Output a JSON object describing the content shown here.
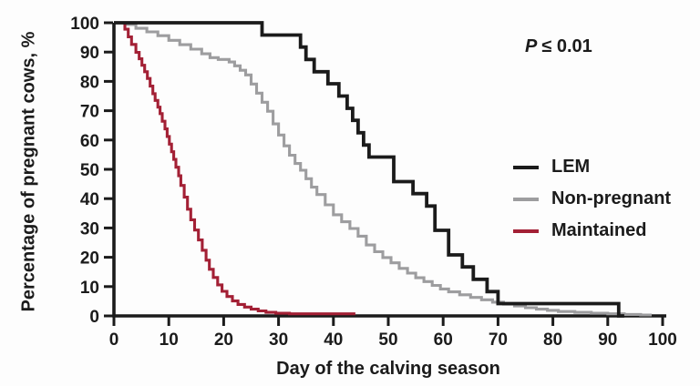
{
  "figure": {
    "annotation": {
      "prefix": "P",
      "rest": "≤ 0.01"
    }
  },
  "chart_data": {
    "type": "line",
    "subtype": "step_survival",
    "title": "",
    "xlabel": "Day of the calving season",
    "ylabel": "Percentage of pregnant cows, %",
    "xlim": [
      0,
      100
    ],
    "ylim": [
      0,
      100
    ],
    "xticks": [
      0,
      10,
      20,
      30,
      40,
      50,
      60,
      70,
      80,
      90,
      100
    ],
    "yticks": [
      0,
      10,
      20,
      30,
      40,
      50,
      60,
      70,
      80,
      90,
      100
    ],
    "grid": false,
    "legend_position": "right-middle",
    "annotation": "P ≤ 0.01",
    "axis_color": "#1b1b1b",
    "series": [
      {
        "name": "LEM",
        "color": "#1b1b1b",
        "end": 93,
        "steps": [
          [
            0,
            100
          ],
          [
            27,
            95.8
          ],
          [
            34,
            91.7
          ],
          [
            35,
            87.5
          ],
          [
            36.5,
            83.3
          ],
          [
            39,
            79.2
          ],
          [
            41,
            75
          ],
          [
            42.5,
            70.8
          ],
          [
            43.5,
            66.7
          ],
          [
            44.5,
            62.5
          ],
          [
            45.5,
            58.3
          ],
          [
            46.5,
            54.2
          ],
          [
            51,
            45.8
          ],
          [
            54.5,
            41.7
          ],
          [
            57,
            37.5
          ],
          [
            58.5,
            29.2
          ],
          [
            61,
            20.8
          ],
          [
            63.5,
            16.7
          ],
          [
            65.5,
            12.5
          ],
          [
            68,
            8.3
          ],
          [
            70,
            4.2
          ],
          [
            92,
            0
          ]
        ]
      },
      {
        "name": "Non-pregnant",
        "color": "#9d9d9f",
        "end": 98,
        "steps": [
          [
            0,
            100
          ],
          [
            2,
            99.4
          ],
          [
            4,
            98.1
          ],
          [
            6,
            96.9
          ],
          [
            8,
            95.6
          ],
          [
            10,
            94
          ],
          [
            12,
            92.5
          ],
          [
            14,
            91
          ],
          [
            16,
            89.4
          ],
          [
            17.5,
            88.1
          ],
          [
            19,
            87.5
          ],
          [
            21,
            86.6
          ],
          [
            22,
            85.3
          ],
          [
            23,
            83.8
          ],
          [
            24,
            82.2
          ],
          [
            25,
            79.1
          ],
          [
            26,
            76
          ],
          [
            27,
            72.9
          ],
          [
            28,
            69.8
          ],
          [
            29,
            65.5
          ],
          [
            30,
            61.7
          ],
          [
            31,
            58
          ],
          [
            32,
            54.8
          ],
          [
            33,
            52
          ],
          [
            34,
            49.7
          ],
          [
            35,
            46.8
          ],
          [
            36,
            43.9
          ],
          [
            37,
            41.4
          ],
          [
            38.5,
            37.9
          ],
          [
            40,
            34.5
          ],
          [
            41.5,
            32.1
          ],
          [
            43,
            29.8
          ],
          [
            44.5,
            27.2
          ],
          [
            46,
            24.2
          ],
          [
            47.5,
            21.9
          ],
          [
            49,
            19.9
          ],
          [
            50.5,
            18.1
          ],
          [
            52,
            16.2
          ],
          [
            53.5,
            14.6
          ],
          [
            55,
            13
          ],
          [
            56.5,
            11.7
          ],
          [
            58,
            10.4
          ],
          [
            59.5,
            9.2
          ],
          [
            61,
            8.2
          ],
          [
            63,
            7.2
          ],
          [
            65,
            6.3
          ],
          [
            67,
            5.5
          ],
          [
            69,
            4.7
          ],
          [
            71,
            4
          ],
          [
            73,
            3.4
          ],
          [
            75,
            2.8
          ],
          [
            77,
            2.3
          ],
          [
            79,
            1.9
          ],
          [
            81,
            1.5
          ],
          [
            84,
            1.2
          ],
          [
            87,
            0.9
          ],
          [
            90,
            0.7
          ],
          [
            93,
            0.5
          ],
          [
            96,
            0.3
          ]
        ]
      },
      {
        "name": "Maintained",
        "color": "#a32035",
        "end": 44,
        "steps": [
          [
            0,
            100
          ],
          [
            2,
            97.8
          ],
          [
            2.6,
            95.2
          ],
          [
            3.2,
            92.6
          ],
          [
            4,
            89.9
          ],
          [
            4.6,
            87.7
          ],
          [
            5.1,
            85.5
          ],
          [
            5.6,
            83.3
          ],
          [
            6.1,
            81
          ],
          [
            6.6,
            78.4
          ],
          [
            7.1,
            75.8
          ],
          [
            7.5,
            73.5
          ],
          [
            8,
            71.2
          ],
          [
            8.4,
            69
          ],
          [
            8.8,
            66.4
          ],
          [
            9.3,
            63.8
          ],
          [
            9.7,
            61.2
          ],
          [
            10.1,
            58.6
          ],
          [
            10.5,
            56
          ],
          [
            10.9,
            53.4
          ],
          [
            11.3,
            50.7
          ],
          [
            11.8,
            47.8
          ],
          [
            12.2,
            44.5
          ],
          [
            12.8,
            40.5
          ],
          [
            13.4,
            36.4
          ],
          [
            14,
            32.8
          ],
          [
            14.7,
            29.3
          ],
          [
            15.4,
            25.9
          ],
          [
            16.1,
            22.4
          ],
          [
            16.8,
            19
          ],
          [
            17.4,
            15.9
          ],
          [
            18.1,
            13.1
          ],
          [
            18.9,
            10.6
          ],
          [
            19.7,
            8.4
          ],
          [
            20.6,
            6.6
          ],
          [
            21.6,
            5.1
          ],
          [
            22.6,
            3.9
          ],
          [
            23.8,
            3
          ],
          [
            25,
            2.3
          ],
          [
            26.3,
            1.7
          ],
          [
            27.7,
            1.2
          ],
          [
            29.5,
            0.9
          ],
          [
            32,
            0.7
          ]
        ]
      }
    ]
  }
}
